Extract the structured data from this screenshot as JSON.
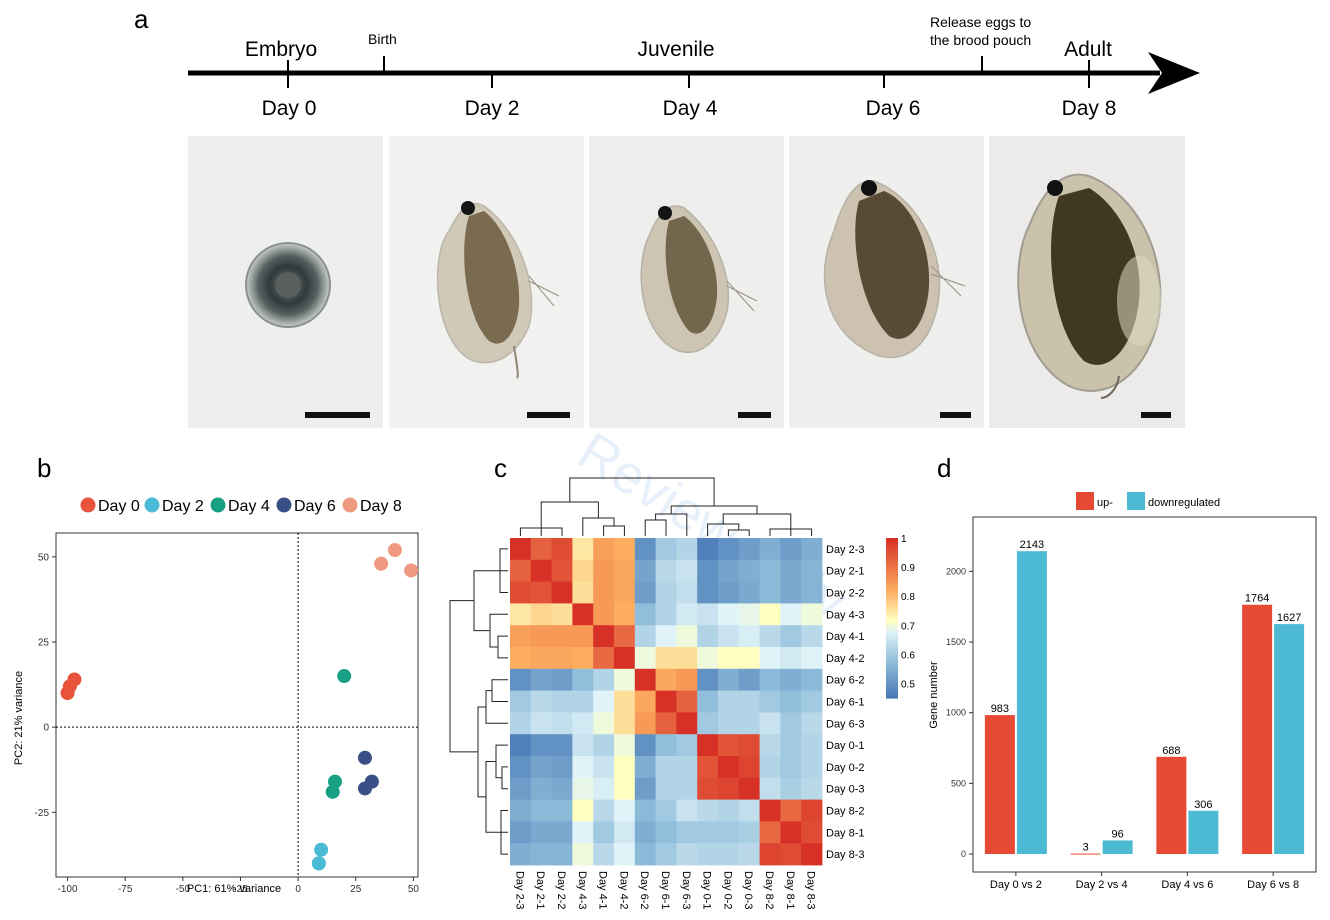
{
  "panels": {
    "a": "a",
    "b": "b",
    "c": "c",
    "d": "d"
  },
  "timeline": {
    "stages": [
      {
        "label": "Embryo"
      },
      {
        "label": "Juvenile"
      },
      {
        "label": "Adult"
      }
    ],
    "events": [
      {
        "label": "Birth"
      },
      {
        "label": "Release eggs to\nthe brood pouch"
      }
    ],
    "days": [
      "Day 0",
      "Day 2",
      "Day 4",
      "Day 6",
      "Day 8"
    ]
  },
  "watermark": "Review Only",
  "pca": {
    "legend": [
      {
        "label": "Day 0",
        "color": "#e8533a"
      },
      {
        "label": "Day 2",
        "color": "#4bbad4"
      },
      {
        "label": "Day 4",
        "color": "#18a085"
      },
      {
        "label": "Day 6",
        "color": "#3a4f86"
      },
      {
        "label": "Day 8",
        "color": "#ef9a80"
      }
    ],
    "xlabel": "PC1: 61% variance",
    "ylabel": "PC2: 21% variance",
    "xticks": [
      "-100",
      "-75",
      "-50",
      "-25",
      "0",
      "25",
      "50"
    ],
    "yticks": [
      "50",
      "25",
      "0",
      "-25"
    ]
  },
  "heatmap": {
    "labels": [
      "Day 2-3",
      "Day 2-1",
      "Day 2-2",
      "Day 4-3",
      "Day 4-1",
      "Day 4-2",
      "Day 6-2",
      "Day 6-1",
      "Day 6-3",
      "Day 0-1",
      "Day 0-2",
      "Day 0-3",
      "Day 8-2",
      "Day 8-1",
      "Day 8-3"
    ],
    "scale_ticks": [
      "1",
      "0.9",
      "0.8",
      "0.7",
      "0.6",
      "0.5"
    ]
  },
  "bars": {
    "legend": [
      {
        "label": "up-",
        "color": "#e64a35"
      },
      {
        "label": "downregulated",
        "color": "#4cbad3"
      }
    ],
    "ylabel": "Gene number",
    "yticks": [
      "0",
      "500",
      "1000",
      "1500",
      "2000"
    ]
  },
  "chart_data": [
    {
      "type": "scatter",
      "xlabel": "PC1: 61% variance",
      "ylabel": "PC2: 21% variance",
      "xlim": [
        -105,
        52
      ],
      "ylim": [
        -44,
        57
      ],
      "grid": false,
      "legend_position": "top",
      "reference_lines": {
        "x": 0,
        "y": 0,
        "style": "dotted"
      },
      "series": [
        {
          "name": "Day 0",
          "color": "#e8533a",
          "points": [
            [
              -100,
              10
            ],
            [
              -99,
              12
            ],
            [
              -97,
              14
            ]
          ]
        },
        {
          "name": "Day 2",
          "color": "#4bbad4",
          "points": [
            [
              10,
              -36
            ],
            [
              9,
              -40
            ],
            [
              9,
              -40
            ]
          ]
        },
        {
          "name": "Day 4",
          "color": "#18a085",
          "points": [
            [
              20,
              15
            ],
            [
              16,
              -16
            ],
            [
              15,
              -19
            ]
          ]
        },
        {
          "name": "Day 6",
          "color": "#3a4f86",
          "points": [
            [
              29,
              -9
            ],
            [
              32,
              -16
            ],
            [
              29,
              -18
            ]
          ]
        },
        {
          "name": "Day 8",
          "color": "#ef9a80",
          "points": [
            [
              42,
              52
            ],
            [
              36,
              48
            ],
            [
              49,
              46
            ]
          ]
        }
      ]
    },
    {
      "type": "heatmap",
      "labels": [
        "Day 2-3",
        "Day 2-1",
        "Day 2-2",
        "Day 4-3",
        "Day 4-1",
        "Day 4-2",
        "Day 6-2",
        "Day 6-1",
        "Day 6-3",
        "Day 0-1",
        "Day 0-2",
        "Day 0-3",
        "Day 8-2",
        "Day 8-1",
        "Day 8-3"
      ],
      "color_range": [
        0.45,
        1.0
      ],
      "colorbar_ticks": [
        1,
        0.9,
        0.8,
        0.7,
        0.6,
        0.5
      ],
      "values": [
        [
          1.0,
          0.93,
          0.96,
          0.75,
          0.84,
          0.82,
          0.5,
          0.6,
          0.62,
          0.47,
          0.5,
          0.52,
          0.55,
          0.52,
          0.55
        ],
        [
          0.93,
          1.0,
          0.95,
          0.77,
          0.85,
          0.83,
          0.53,
          0.63,
          0.65,
          0.5,
          0.53,
          0.55,
          0.57,
          0.54,
          0.56
        ],
        [
          0.96,
          0.95,
          1.0,
          0.76,
          0.85,
          0.83,
          0.52,
          0.62,
          0.64,
          0.5,
          0.52,
          0.54,
          0.57,
          0.54,
          0.56
        ],
        [
          0.75,
          0.77,
          0.76,
          1.0,
          0.85,
          0.82,
          0.58,
          0.62,
          0.66,
          0.65,
          0.68,
          0.69,
          0.72,
          0.68,
          0.7
        ],
        [
          0.84,
          0.85,
          0.85,
          0.85,
          1.0,
          0.92,
          0.62,
          0.68,
          0.7,
          0.62,
          0.65,
          0.67,
          0.63,
          0.6,
          0.63
        ],
        [
          0.82,
          0.83,
          0.83,
          0.82,
          0.92,
          1.0,
          0.7,
          0.76,
          0.76,
          0.7,
          0.72,
          0.72,
          0.68,
          0.66,
          0.68
        ],
        [
          0.5,
          0.53,
          0.52,
          0.58,
          0.62,
          0.7,
          1.0,
          0.83,
          0.85,
          0.5,
          0.55,
          0.52,
          0.57,
          0.55,
          0.57
        ],
        [
          0.6,
          0.63,
          0.62,
          0.62,
          0.68,
          0.76,
          0.83,
          1.0,
          0.93,
          0.58,
          0.62,
          0.62,
          0.6,
          0.58,
          0.6
        ],
        [
          0.62,
          0.65,
          0.64,
          0.66,
          0.7,
          0.76,
          0.85,
          0.93,
          1.0,
          0.6,
          0.62,
          0.62,
          0.65,
          0.6,
          0.63
        ],
        [
          0.47,
          0.5,
          0.5,
          0.65,
          0.62,
          0.7,
          0.5,
          0.58,
          0.6,
          1.0,
          0.95,
          0.96,
          0.63,
          0.6,
          0.62
        ],
        [
          0.5,
          0.53,
          0.52,
          0.68,
          0.65,
          0.72,
          0.55,
          0.62,
          0.62,
          0.95,
          1.0,
          0.97,
          0.62,
          0.6,
          0.62
        ],
        [
          0.52,
          0.55,
          0.54,
          0.69,
          0.67,
          0.72,
          0.52,
          0.62,
          0.62,
          0.96,
          0.97,
          1.0,
          0.64,
          0.61,
          0.63
        ],
        [
          0.55,
          0.57,
          0.57,
          0.72,
          0.63,
          0.68,
          0.57,
          0.6,
          0.65,
          0.63,
          0.62,
          0.64,
          1.0,
          0.92,
          0.97
        ],
        [
          0.52,
          0.54,
          0.54,
          0.68,
          0.6,
          0.66,
          0.55,
          0.58,
          0.6,
          0.6,
          0.6,
          0.61,
          0.92,
          1.0,
          0.96
        ],
        [
          0.55,
          0.56,
          0.56,
          0.7,
          0.63,
          0.68,
          0.57,
          0.6,
          0.63,
          0.62,
          0.62,
          0.63,
          0.97,
          0.96,
          1.0
        ]
      ]
    },
    {
      "type": "bar",
      "categories": [
        "Day 0 vs 2",
        "Day 2 vs 4",
        "Day 4 vs 6",
        "Day 6 vs 8"
      ],
      "ylabel": "Gene number",
      "ylim": [
        0,
        2300
      ],
      "legend_position": "top",
      "series": [
        {
          "name": "up-",
          "color": "#e64a35",
          "values": [
            983,
            3,
            688,
            1764
          ]
        },
        {
          "name": "downregulated",
          "color": "#4cbad3",
          "values": [
            2143,
            96,
            306,
            1627
          ]
        }
      ]
    }
  ]
}
